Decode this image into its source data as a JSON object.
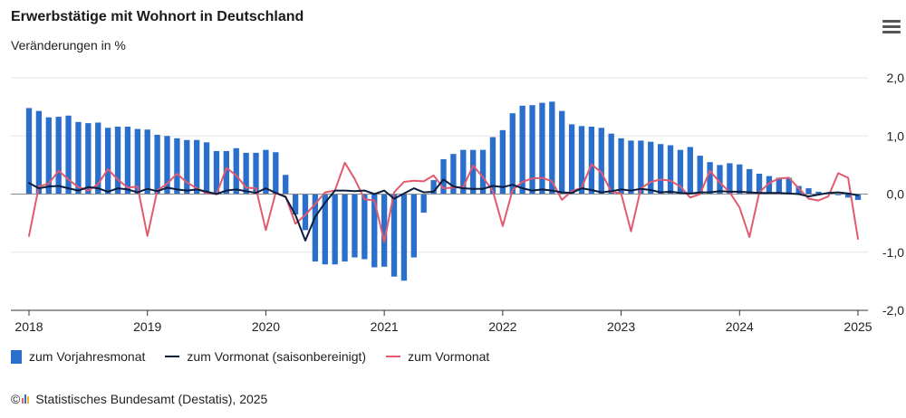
{
  "header": {
    "title": "Erwerbstätige mit Wohnort in Deutschland",
    "subtitle": "Veränderungen in %"
  },
  "footer": {
    "copyright_symbol": "©",
    "source": "Statistisches Bundesamt (Destatis), 2025"
  },
  "icons": {
    "menu": "hamburger-menu-icon",
    "logo": "destatis-logo-icon"
  },
  "colors": {
    "bars": "#2b6fcc",
    "line_sa": "#0d1d3d",
    "line_mom": "#e25a6e",
    "grid": "#e3e3e3",
    "zero_line": "#8a8a8a"
  },
  "chart_data": {
    "type": "bar",
    "title": "Erwerbstätige mit Wohnort in Deutschland",
    "subtitle": "Veränderungen in %",
    "ylim": [
      -2.0,
      2.0
    ],
    "yticks": [
      "2,0",
      "1,0",
      "0,0",
      "-1,0",
      "-2,0"
    ],
    "ytick_values": [
      2,
      1,
      0,
      -1,
      -2
    ],
    "xticks": [
      "2018",
      "2019",
      "2020",
      "2021",
      "2022",
      "2023",
      "2024",
      "2025"
    ],
    "grid": true,
    "legend_position": "bottom-left",
    "months": 85,
    "series": [
      {
        "name": "zum Vorjahresmonat",
        "kind": "bar",
        "values": [
          1.48,
          1.43,
          1.32,
          1.33,
          1.35,
          1.24,
          1.22,
          1.23,
          1.14,
          1.16,
          1.16,
          1.12,
          1.11,
          1.02,
          1.0,
          0.96,
          0.93,
          0.93,
          0.89,
          0.74,
          0.74,
          0.79,
          0.71,
          0.71,
          0.76,
          0.72,
          0.33,
          -0.35,
          -0.62,
          -1.16,
          -1.21,
          -1.21,
          -1.16,
          -1.09,
          -1.12,
          -1.26,
          -1.25,
          -1.42,
          -1.49,
          -1.09,
          -0.32,
          0.24,
          0.6,
          0.69,
          0.76,
          0.76,
          0.76,
          0.98,
          1.1,
          1.39,
          1.52,
          1.53,
          1.57,
          1.59,
          1.43,
          1.2,
          1.17,
          1.16,
          1.14,
          1.04,
          0.96,
          0.92,
          0.92,
          0.9,
          0.86,
          0.84,
          0.76,
          0.81,
          0.66,
          0.55,
          0.5,
          0.53,
          0.51,
          0.43,
          0.35,
          0.31,
          0.28,
          0.28,
          0.14,
          0.1,
          0.04,
          0.02,
          -0.02,
          -0.06,
          -0.1
        ]
      },
      {
        "name": "zum Vormonat (saisonbereinigt)",
        "kind": "line",
        "values": [
          0.19,
          0.1,
          0.13,
          0.14,
          0.1,
          0.06,
          0.12,
          0.1,
          0.04,
          0.1,
          0.08,
          0.03,
          0.09,
          0.05,
          0.11,
          0.08,
          0.06,
          0.08,
          0.04,
          0.0,
          0.06,
          0.08,
          0.05,
          0.02,
          0.1,
          0.02,
          -0.05,
          -0.36,
          -0.8,
          -0.39,
          -0.15,
          0.06,
          0.06,
          0.05,
          0.06,
          0.0,
          0.06,
          -0.08,
          0.01,
          0.1,
          0.03,
          0.04,
          0.25,
          0.13,
          0.1,
          0.09,
          0.09,
          0.14,
          0.12,
          0.16,
          0.1,
          0.06,
          0.08,
          0.06,
          0.03,
          0.02,
          0.1,
          0.07,
          0.03,
          0.05,
          0.08,
          0.06,
          0.09,
          0.07,
          0.03,
          0.04,
          0.02,
          0.01,
          0.03,
          0.03,
          0.05,
          0.04,
          0.04,
          0.03,
          0.02,
          0.02,
          0.02,
          0.01,
          0.0,
          -0.04,
          -0.01,
          0.02,
          0.03,
          0.01,
          -0.02
        ]
      },
      {
        "name": "zum Vormonat",
        "kind": "line",
        "values": [
          -0.72,
          0.13,
          0.18,
          0.4,
          0.25,
          0.12,
          0.06,
          0.17,
          0.43,
          0.25,
          0.11,
          0.13,
          -0.72,
          0.06,
          0.18,
          0.35,
          0.2,
          0.1,
          0.02,
          0.0,
          0.45,
          0.32,
          0.11,
          0.1,
          -0.62,
          0.02,
          -0.04,
          -0.51,
          -0.36,
          -0.17,
          0.03,
          0.06,
          0.54,
          0.26,
          -0.09,
          -0.11,
          -0.82,
          0.03,
          0.21,
          0.23,
          0.22,
          0.32,
          0.1,
          0.11,
          0.12,
          0.49,
          0.29,
          0.05,
          -0.55,
          0.07,
          0.21,
          0.27,
          0.28,
          0.22,
          -0.1,
          0.05,
          0.11,
          0.51,
          0.37,
          0.04,
          0.01,
          -0.64,
          0.1,
          0.21,
          0.25,
          0.23,
          0.13,
          -0.06,
          0.0,
          0.4,
          0.2,
          0.03,
          -0.23,
          -0.74,
          0.03,
          0.19,
          0.27,
          0.28,
          0.1,
          -0.08,
          -0.11,
          -0.04,
          0.36,
          0.28,
          -0.77
        ]
      }
    ]
  }
}
